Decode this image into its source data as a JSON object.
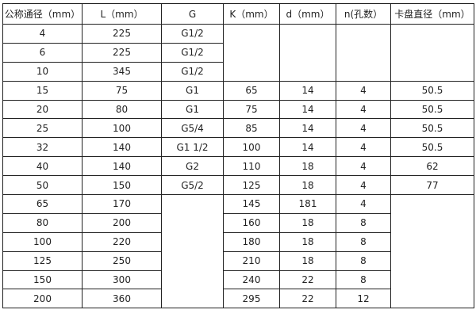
{
  "headers": [
    "公称通径（mm）",
    "L（mm）",
    "G",
    "K（mm）",
    "d（mm）",
    "n(孔数）",
    "卡盘直径（mm）"
  ],
  "rows": [
    {
      "dn": "4",
      "l": "225",
      "g": "G1/2"
    },
    {
      "dn": "6",
      "l": "225",
      "g": "G1/2"
    },
    {
      "dn": "10",
      "l": "345",
      "g": "G1/2"
    },
    {
      "dn": "15",
      "l": "75",
      "g": "G1",
      "k": "65",
      "d": "14",
      "n": "4",
      "chuck": "50.5"
    },
    {
      "dn": "20",
      "l": "80",
      "g": "G1",
      "k": "75",
      "d": "14",
      "n": "4",
      "chuck": "50.5"
    },
    {
      "dn": "25",
      "l": "100",
      "g": "G5/4",
      "k": "85",
      "d": "14",
      "n": "4",
      "chuck": "50.5"
    },
    {
      "dn": "32",
      "l": "140",
      "g": "G1  1/2",
      "k": "100",
      "d": "14",
      "n": "4",
      "chuck": "50.5"
    },
    {
      "dn": "40",
      "l": "140",
      "g": "G2",
      "k": "110",
      "d": "18",
      "n": "4",
      "chuck": "62"
    },
    {
      "dn": "50",
      "l": "150",
      "g": "G5/2",
      "k": "125",
      "d": "18",
      "n": "4",
      "chuck": "77"
    },
    {
      "dn": "65",
      "l": "170",
      "k": "145",
      "d": "181",
      "n": "4"
    },
    {
      "dn": "80",
      "l": "200",
      "k": "160",
      "d": "18",
      "n": "8"
    },
    {
      "dn": "100",
      "l": "220",
      "k": "180",
      "d": "18",
      "n": "8"
    },
    {
      "dn": "125",
      "l": "250",
      "k": "210",
      "d": "18",
      "n": "8"
    },
    {
      "dn": "150",
      "l": "300",
      "k": "240",
      "d": "22",
      "n": "8"
    },
    {
      "dn": "200",
      "l": "360",
      "k": "295",
      "d": "22",
      "n": "12"
    }
  ]
}
